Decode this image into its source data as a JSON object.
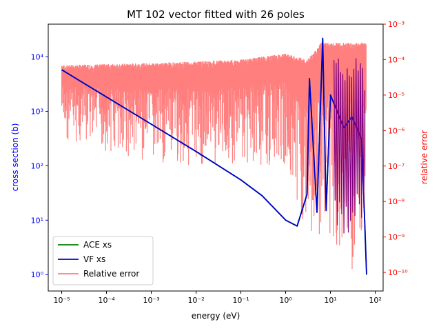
{
  "chart_data": {
    "type": "line",
    "title": "MT 102 vector fitted with 26 poles",
    "xlabel": "energy (eV)",
    "ylabel_left": "cross section (b)",
    "ylabel_right": "relative error",
    "x_scale": "log",
    "y_left_scale": "log",
    "y_right_scale": "log",
    "xlim": [
      5e-06,
      150
    ],
    "ylim_left": [
      0.5,
      40000
    ],
    "ylim_right": [
      3e-11,
      0.001
    ],
    "x_ticks": [
      {
        "value": 1e-05,
        "label": "10⁻⁵"
      },
      {
        "value": 0.0001,
        "label": "10⁻⁴"
      },
      {
        "value": 0.001,
        "label": "10⁻³"
      },
      {
        "value": 0.01,
        "label": "10⁻²"
      },
      {
        "value": 0.1,
        "label": "10⁻¹"
      },
      {
        "value": 1,
        "label": "10⁰"
      },
      {
        "value": 10,
        "label": "10¹"
      },
      {
        "value": 100,
        "label": "10²"
      }
    ],
    "y_left_ticks": [
      {
        "value": 1,
        "label": "10⁰"
      },
      {
        "value": 10,
        "label": "10¹"
      },
      {
        "value": 100,
        "label": "10²"
      },
      {
        "value": 1000,
        "label": "10³"
      },
      {
        "value": 10000,
        "label": "10⁴"
      }
    ],
    "y_right_ticks": [
      {
        "value": 1e-10,
        "label": "10⁻¹⁰"
      },
      {
        "value": 1e-09,
        "label": "10⁻⁹"
      },
      {
        "value": 1e-08,
        "label": "10⁻⁸"
      },
      {
        "value": 1e-07,
        "label": "10⁻⁷"
      },
      {
        "value": 1e-06,
        "label": "10⁻⁶"
      },
      {
        "value": 1e-05,
        "label": "10⁻⁵"
      },
      {
        "value": 0.0001,
        "label": "10⁻⁴"
      },
      {
        "value": 0.001,
        "label": "10⁻³"
      }
    ],
    "series": [
      {
        "name": "ACE xs",
        "axis": "left",
        "color": "#008000",
        "x": [
          1e-05,
          0.0001,
          0.001,
          0.01,
          0.1,
          0.3,
          1.0,
          1.8,
          3.0,
          3.4,
          5.0,
          6.7,
          8.0,
          10.0,
          14,
          20,
          30,
          50,
          64
        ],
        "y": [
          5800,
          1830,
          580,
          183,
          55,
          28,
          10,
          7.8,
          30,
          4000,
          14,
          22000,
          15,
          2000,
          1000,
          500,
          800,
          300,
          1
        ]
      },
      {
        "name": "VF xs",
        "axis": "left",
        "color": "#0000cc",
        "x": [
          1e-05,
          0.0001,
          0.001,
          0.01,
          0.1,
          0.3,
          1.0,
          1.8,
          3.0,
          3.4,
          5.0,
          6.7,
          8.0,
          10.0,
          14,
          20,
          30,
          50,
          64
        ],
        "y": [
          5800,
          1830,
          580,
          183,
          55,
          28,
          10,
          7.8,
          30,
          4000,
          14,
          22000,
          15,
          2000,
          1000,
          500,
          800,
          300,
          1
        ]
      },
      {
        "name": "Relative error",
        "axis": "right",
        "color": "#ff0000",
        "opacity": 0.5,
        "x_range": [
          1e-05,
          64
        ],
        "envelope_upper": [
          [
            1e-05,
            7e-05
          ],
          [
            0.001,
            8e-05
          ],
          [
            0.1,
            0.0001
          ],
          [
            1,
            0.00015
          ],
          [
            3,
            0.0001
          ],
          [
            5,
            0.0002
          ],
          [
            6,
            0.0003
          ],
          [
            64,
            0.0003
          ]
        ],
        "envelope_lower": [
          [
            1e-05,
            5e-07
          ],
          [
            0.001,
            1e-07
          ],
          [
            0.1,
            1e-07
          ],
          [
            1,
            1e-07
          ],
          [
            3,
            1e-09
          ],
          [
            10,
            1e-09
          ],
          [
            30,
            1e-10
          ],
          [
            64,
            1e-10
          ]
        ]
      }
    ],
    "legend": {
      "position": "lower-left",
      "entries": [
        "ACE xs",
        "VF xs",
        "Relative error"
      ]
    }
  }
}
